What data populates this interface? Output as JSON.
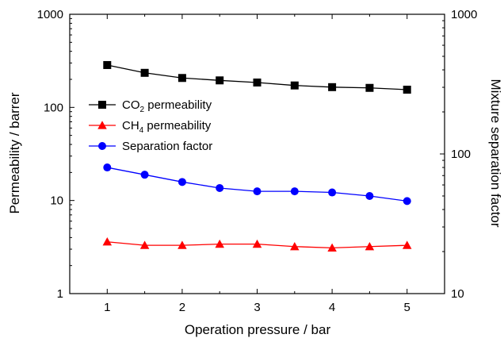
{
  "chart_data": {
    "type": "line",
    "title": "",
    "xlabel": "Operation pressure / bar",
    "ylabel_left": "Permeability / barrer",
    "ylabel_right": "Mixture separation factor",
    "x": [
      1,
      1.5,
      2,
      2.5,
      3,
      3.5,
      4,
      4.5,
      5
    ],
    "xlim": [
      0.5,
      5.5
    ],
    "xticks": [
      "1",
      "2",
      "3",
      "4",
      "5"
    ],
    "ylim_left": [
      1,
      1000
    ],
    "ylim_right": [
      10,
      1000
    ],
    "yscale": "log",
    "yticks_left": [
      "1",
      "10",
      "100",
      "1000"
    ],
    "yticks_right": [
      "10",
      "100",
      "1000"
    ],
    "grid": false,
    "legend_position": "left",
    "series": [
      {
        "name": "CO2 permeability",
        "name_main": "CO",
        "name_sub": "2",
        "name_rest": " permeability",
        "axis": "left",
        "marker": "square",
        "color": "#000000",
        "values": [
          285,
          235,
          207,
          195,
          185,
          172,
          165,
          162,
          155
        ]
      },
      {
        "name": "CH4 permeability",
        "name_main": "CH",
        "name_sub": "4",
        "name_rest": " permeability",
        "axis": "left",
        "marker": "triangle",
        "color": "#ff0000",
        "values": [
          3.6,
          3.3,
          3.3,
          3.4,
          3.4,
          3.2,
          3.1,
          3.2,
          3.3
        ]
      },
      {
        "name": "Separation factor",
        "name_main": "Separation factor",
        "name_sub": "",
        "name_rest": "",
        "axis": "right",
        "marker": "circle",
        "color": "#0000ff",
        "values": [
          80,
          71,
          63,
          57,
          54,
          54,
          53,
          50,
          46
        ]
      }
    ]
  }
}
